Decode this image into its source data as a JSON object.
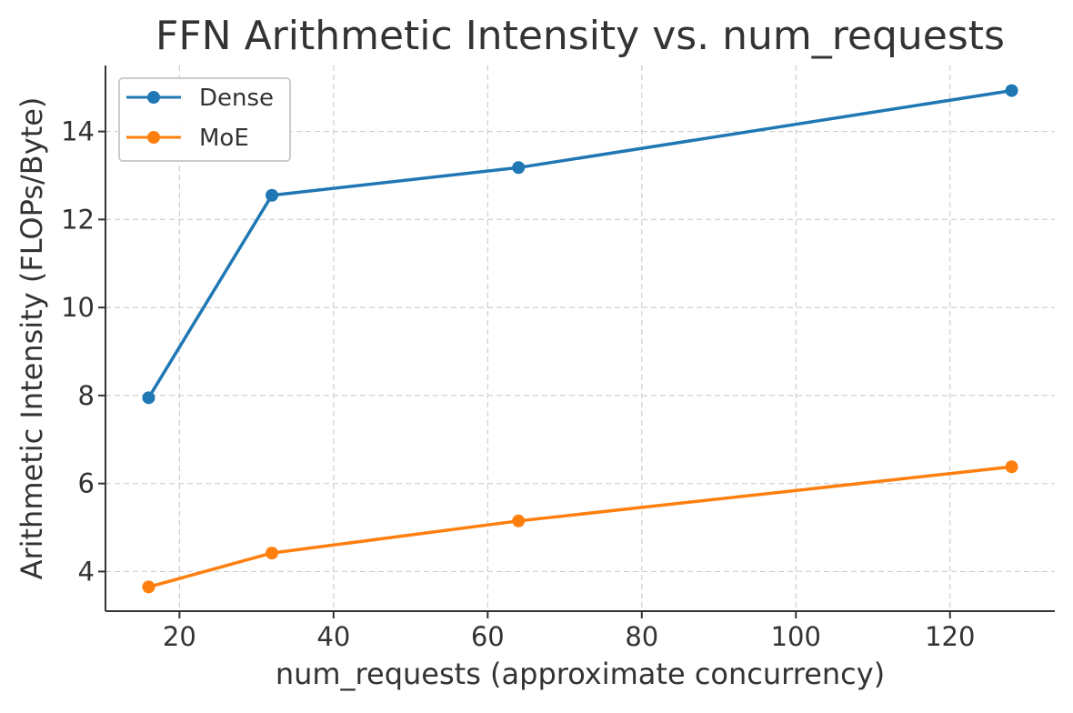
{
  "chart_data": {
    "type": "line",
    "title": "FFN Arithmetic Intensity vs. num_requests",
    "xlabel": "num_requests (approximate concurrency)",
    "ylabel": "Arithmetic Intensity (FLOPs/Byte)",
    "x": [
      16,
      32,
      64,
      128
    ],
    "series": [
      {
        "name": "Dense",
        "values": [
          7.95,
          12.55,
          13.18,
          14.93
        ],
        "color": "#1f77b4"
      },
      {
        "name": "MoE",
        "values": [
          3.65,
          4.42,
          5.15,
          6.38
        ],
        "color": "#ff7f0e"
      }
    ],
    "xlim": [
      10.4,
      133.6
    ],
    "ylim": [
      3.1,
      15.5
    ],
    "xticks": [
      20,
      40,
      60,
      80,
      100,
      120
    ],
    "yticks": [
      4,
      6,
      8,
      10,
      12,
      14
    ],
    "grid": true,
    "grid_style": "dashed",
    "legend_position": "top-left",
    "marker": "circle"
  }
}
